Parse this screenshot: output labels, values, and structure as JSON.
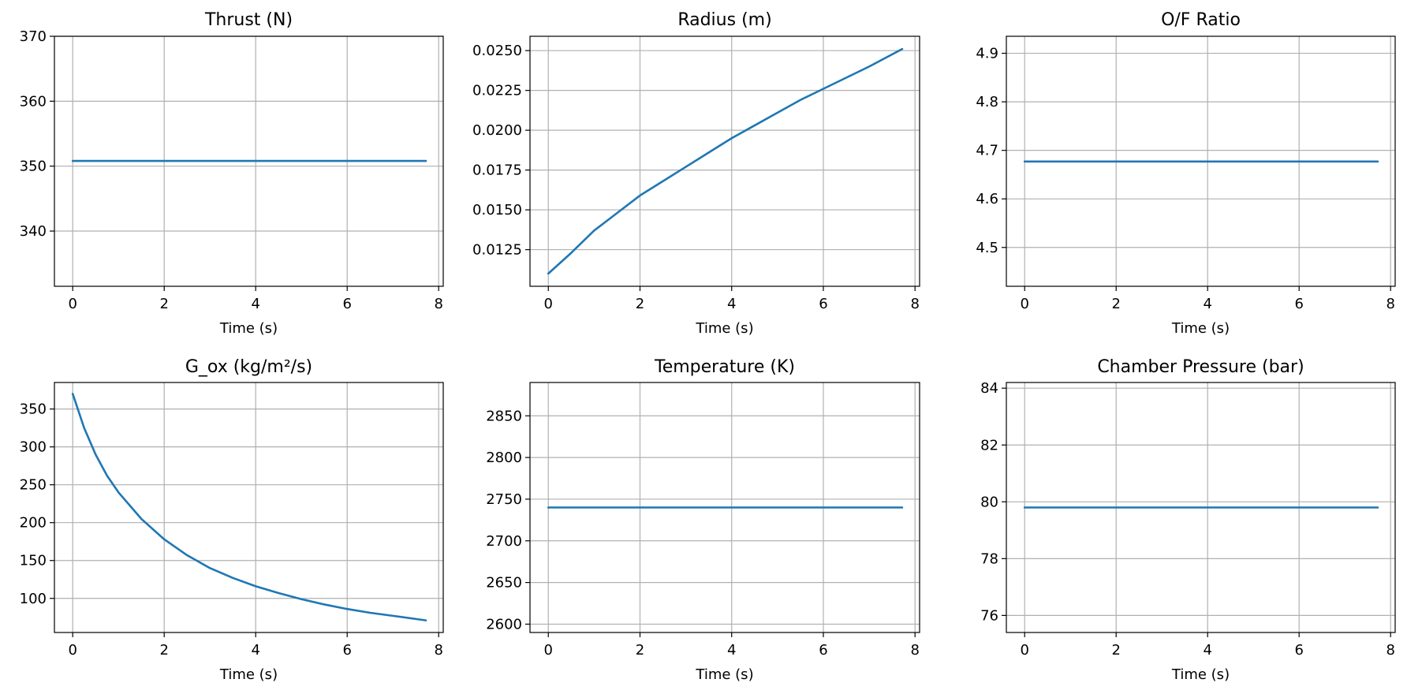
{
  "chart_data": [
    {
      "type": "line",
      "title": "Thrust (N)",
      "xlabel": "Time (s)",
      "ylabel": "",
      "xlim": [
        -0.4,
        8.1
      ],
      "ylim": [
        331.5,
        370
      ],
      "xticks": [
        0,
        2,
        4,
        6,
        8
      ],
      "xtick_labels": [
        "0",
        "2",
        "4",
        "6",
        "8"
      ],
      "yticks": [
        340,
        350,
        360,
        370
      ],
      "ytick_labels": [
        "340",
        "350",
        "360",
        "370"
      ],
      "grid": true,
      "series": [
        {
          "color": "#1f77b4",
          "x": [
            0,
            7.72
          ],
          "y": [
            350.8,
            350.8
          ]
        }
      ]
    },
    {
      "type": "line",
      "title": "Radius (m)",
      "xlabel": "Time (s)",
      "ylabel": "",
      "xlim": [
        -0.4,
        8.1
      ],
      "ylim": [
        0.0102,
        0.0259
      ],
      "xticks": [
        0,
        2,
        4,
        6,
        8
      ],
      "xtick_labels": [
        "0",
        "2",
        "4",
        "6",
        "8"
      ],
      "yticks": [
        0.0125,
        0.015,
        0.0175,
        0.02,
        0.0225,
        0.025
      ],
      "ytick_labels": [
        "0.0125",
        "0.0150",
        "0.0175",
        "0.0200",
        "0.0225",
        "0.0250"
      ],
      "grid": true,
      "series": [
        {
          "color": "#1f77b4",
          "x": [
            0,
            0.5,
            1,
            1.5,
            2,
            2.5,
            3,
            3.5,
            4,
            4.5,
            5,
            5.5,
            6,
            6.5,
            7,
            7.72
          ],
          "y": [
            0.011,
            0.0123,
            0.0137,
            0.0148,
            0.0159,
            0.0168,
            0.0177,
            0.0186,
            0.0195,
            0.0203,
            0.0211,
            0.0219,
            0.0226,
            0.0233,
            0.024,
            0.0251
          ]
        }
      ]
    },
    {
      "type": "line",
      "title": "O/F Ratio",
      "xlabel": "Time (s)",
      "ylabel": "",
      "xlim": [
        -0.4,
        8.1
      ],
      "ylim": [
        4.42,
        4.935
      ],
      "xticks": [
        0,
        2,
        4,
        6,
        8
      ],
      "xtick_labels": [
        "0",
        "2",
        "4",
        "6",
        "8"
      ],
      "yticks": [
        4.5,
        4.6,
        4.7,
        4.8,
        4.9
      ],
      "ytick_labels": [
        "4.5",
        "4.6",
        "4.7",
        "4.8",
        "4.9"
      ],
      "grid": true,
      "series": [
        {
          "color": "#1f77b4",
          "x": [
            0,
            7.72
          ],
          "y": [
            4.677,
            4.677
          ]
        }
      ]
    },
    {
      "type": "line",
      "title": "G_ox (kg/m²/s)",
      "xlabel": "Time (s)",
      "ylabel": "",
      "xlim": [
        -0.4,
        8.1
      ],
      "ylim": [
        55,
        385
      ],
      "xticks": [
        0,
        2,
        4,
        6,
        8
      ],
      "xtick_labels": [
        "0",
        "2",
        "4",
        "6",
        "8"
      ],
      "yticks": [
        100,
        150,
        200,
        250,
        300,
        350
      ],
      "ytick_labels": [
        "100",
        "150",
        "200",
        "250",
        "300",
        "350"
      ],
      "grid": true,
      "series": [
        {
          "color": "#1f77b4",
          "x": [
            0,
            0.25,
            0.5,
            0.75,
            1,
            1.5,
            2,
            2.5,
            3,
            3.5,
            4,
            4.5,
            5,
            5.5,
            6,
            6.5,
            7,
            7.72
          ],
          "y": [
            370,
            325,
            290,
            262,
            240,
            205,
            178,
            157,
            140,
            127,
            116,
            107,
            99,
            92,
            86,
            81,
            77,
            71
          ]
        }
      ]
    },
    {
      "type": "line",
      "title": "Temperature (K)",
      "xlabel": "Time (s)",
      "ylabel": "",
      "xlim": [
        -0.4,
        8.1
      ],
      "ylim": [
        2590,
        2890
      ],
      "xticks": [
        0,
        2,
        4,
        6,
        8
      ],
      "xtick_labels": [
        "0",
        "2",
        "4",
        "6",
        "8"
      ],
      "yticks": [
        2600,
        2650,
        2700,
        2750,
        2800,
        2850
      ],
      "ytick_labels": [
        "2600",
        "2650",
        "2700",
        "2750",
        "2800",
        "2850"
      ],
      "grid": true,
      "series": [
        {
          "color": "#1f77b4",
          "x": [
            0,
            7.72
          ],
          "y": [
            2740,
            2740
          ]
        }
      ]
    },
    {
      "type": "line",
      "title": "Chamber Pressure (bar)",
      "xlabel": "Time (s)",
      "ylabel": "",
      "xlim": [
        -0.4,
        8.1
      ],
      "ylim": [
        75.4,
        84.2
      ],
      "xticks": [
        0,
        2,
        4,
        6,
        8
      ],
      "xtick_labels": [
        "0",
        "2",
        "4",
        "6",
        "8"
      ],
      "yticks": [
        76,
        78,
        80,
        82,
        84
      ],
      "ytick_labels": [
        "76",
        "78",
        "80",
        "82",
        "84"
      ],
      "grid": true,
      "series": [
        {
          "color": "#1f77b4",
          "x": [
            0,
            7.72
          ],
          "y": [
            79.8,
            79.8
          ]
        }
      ]
    }
  ]
}
